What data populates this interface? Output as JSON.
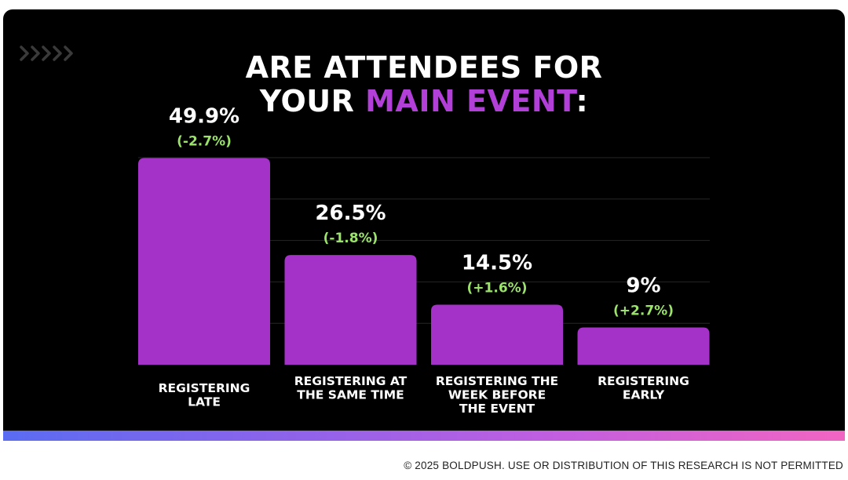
{
  "title": {
    "line1": "ARE ATTENDEES FOR",
    "line2_prefix": "YOUR ",
    "line2_accent": "MAIN EVENT",
    "line2_suffix": ":"
  },
  "chevrons_icon": "chevrons-right-icon",
  "copyright": "© 2025 BOLDPUSH. USE OR DISTRIBUTION OF THIS RESEARCH IS NOT PERMITTED",
  "colors": {
    "background": "#000000",
    "bar": "#a432c8",
    "value_label": "#ffffff",
    "change_label": "#9be36b",
    "accent": "#b13fd8",
    "gradient_start": "#5a6cf2",
    "gradient_end": "#f165c2"
  },
  "chart_data": {
    "type": "bar",
    "categories": [
      [
        "REGISTERING",
        "LATE"
      ],
      [
        "REGISTERING AT",
        "THE SAME TIME"
      ],
      [
        "REGISTERING THE",
        "WEEK BEFORE",
        "THE EVENT"
      ],
      [
        "REGISTERING",
        "EARLY"
      ]
    ],
    "values": [
      49.9,
      26.5,
      14.5,
      9
    ],
    "value_labels": [
      "49.9%",
      "26.5%",
      "14.5%",
      "9%"
    ],
    "change_labels": [
      "(-2.7%)",
      "(-1.8%)",
      "(+1.6%)",
      "(+2.7%)"
    ],
    "ylim": [
      0,
      50
    ],
    "grid": true
  }
}
